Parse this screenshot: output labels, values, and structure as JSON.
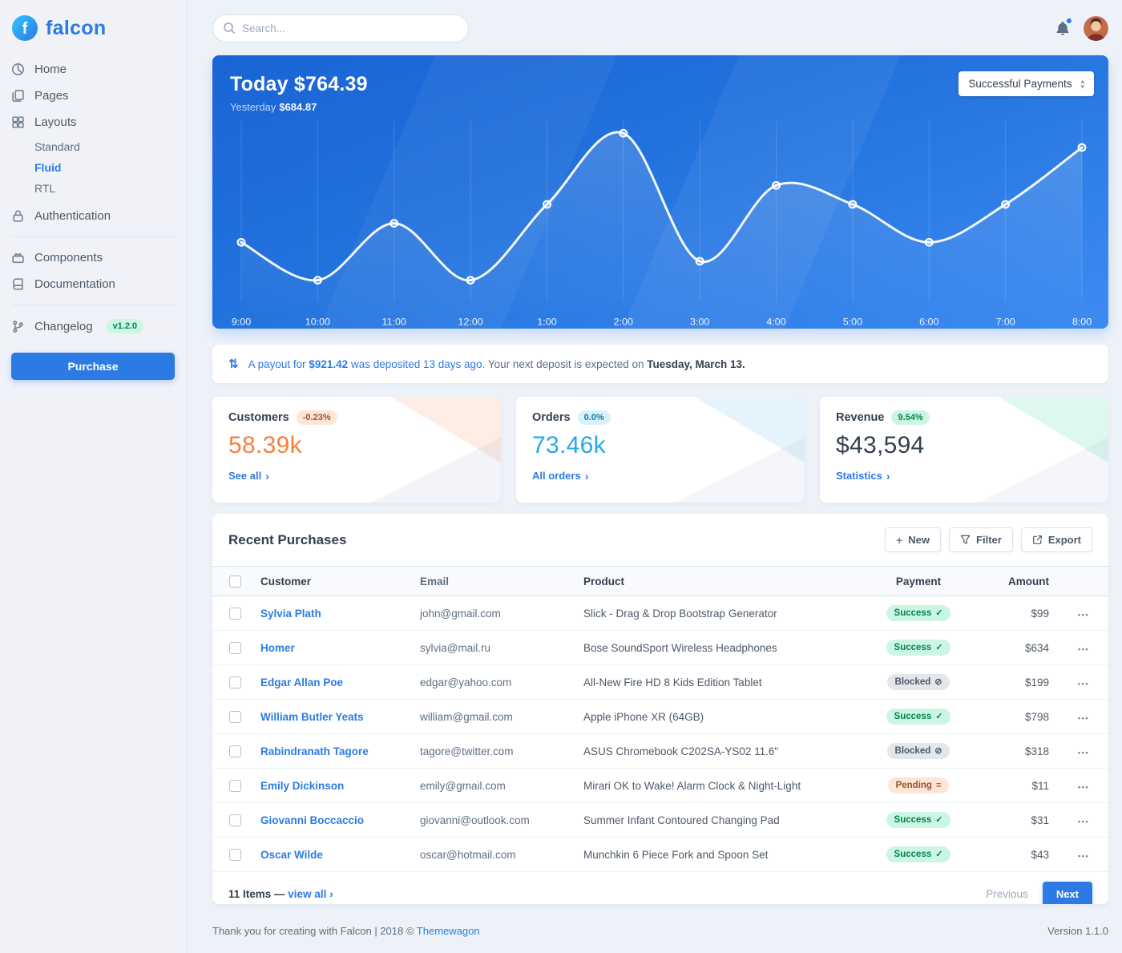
{
  "brand": {
    "name": "falcon"
  },
  "sidebar": {
    "items": {
      "home": "Home",
      "pages": "Pages",
      "layouts": "Layouts",
      "layouts_children": [
        "Standard",
        "Fluid",
        "RTL"
      ],
      "active_layout": "Fluid",
      "authentication": "Authentication",
      "components": "Components",
      "documentation": "Documentation",
      "changelog": "Changelog",
      "changelog_badge": "v1.2.0"
    },
    "purchase_label": "Purchase"
  },
  "topbar": {
    "search_placeholder": "Search..."
  },
  "chart_card": {
    "title": "Today $764.39",
    "yesterday_label": "Yesterday",
    "yesterday_value": "$684.87",
    "select_value": "Successful Payments"
  },
  "chart_data": {
    "type": "line",
    "title": "Today $764.39",
    "x": [
      "9:00",
      "10:00",
      "11:00",
      "12:00",
      "1:00",
      "2:00",
      "3:00",
      "4:00",
      "5:00",
      "6:00",
      "7:00",
      "8:00"
    ],
    "values": [
      70,
      30,
      90,
      30,
      110,
      185,
      50,
      130,
      110,
      70,
      110,
      170
    ],
    "ylim": [
      0,
      200
    ],
    "grid": "vertical",
    "line_color": "#ffffff"
  },
  "payout_notice": {
    "link_part_1": "A payout for ",
    "amount": "$921.42",
    "link_part_2": " was deposited 13 days ago.",
    "muted_part": " Your next deposit is expected on ",
    "date": "Tuesday, March 13."
  },
  "stats": {
    "customers": {
      "title": "Customers",
      "badge": "-0.23%",
      "value": "58.39k",
      "link": "See all"
    },
    "orders": {
      "title": "Orders",
      "badge": "0.0%",
      "value": "73.46k",
      "link": "All orders"
    },
    "revenue": {
      "title": "Revenue",
      "badge": "9.54%",
      "value": "$43,594",
      "link": "Statistics"
    }
  },
  "purchases": {
    "title": "Recent Purchases",
    "buttons": {
      "new": "New",
      "filter": "Filter",
      "export": "Export"
    },
    "columns": [
      "Customer",
      "Email",
      "Product",
      "Payment",
      "Amount"
    ],
    "rows": [
      {
        "customer": "Sylvia Plath",
        "email": "john@gmail.com",
        "product": "Slick - Drag & Drop Bootstrap Generator",
        "payment": "Success",
        "status": "success",
        "amount": "$99"
      },
      {
        "customer": "Homer",
        "email": "sylvia@mail.ru",
        "product": "Bose SoundSport Wireless Headphones",
        "payment": "Success",
        "status": "success",
        "amount": "$634"
      },
      {
        "customer": "Edgar Allan Poe",
        "email": "edgar@yahoo.com",
        "product": "All-New Fire HD 8 Kids Edition Tablet",
        "payment": "Blocked",
        "status": "blocked",
        "amount": "$199"
      },
      {
        "customer": "William Butler Yeats",
        "email": "william@gmail.com",
        "product": "Apple iPhone XR (64GB)",
        "payment": "Success",
        "status": "success",
        "amount": "$798"
      },
      {
        "customer": "Rabindranath Tagore",
        "email": "tagore@twitter.com",
        "product": "ASUS Chromebook C202SA-YS02 11.6\"",
        "payment": "Blocked",
        "status": "blocked",
        "amount": "$318"
      },
      {
        "customer": "Emily Dickinson",
        "email": "emily@gmail.com",
        "product": "Mirari OK to Wake! Alarm Clock & Night-Light",
        "payment": "Pending",
        "status": "pending",
        "amount": "$11"
      },
      {
        "customer": "Giovanni Boccaccio",
        "email": "giovanni@outlook.com",
        "product": "Summer Infant Contoured Changing Pad",
        "payment": "Success",
        "status": "success",
        "amount": "$31"
      },
      {
        "customer": "Oscar Wilde",
        "email": "oscar@hotmail.com",
        "product": "Munchkin 6 Piece Fork and Spoon Set",
        "payment": "Success",
        "status": "success",
        "amount": "$43"
      }
    ],
    "footer": {
      "items_text": "11 Items — ",
      "view_all": "view all",
      "previous": "Previous",
      "next": "Next"
    }
  },
  "status_icons": {
    "success": "✓",
    "blocked": "⊘",
    "pending": "≡"
  },
  "icons": {
    "exchange": "⇅",
    "chevron_right": "›",
    "plus": "+",
    "ellipsis": "•••",
    "caret_up": "▴",
    "caret_down": "▾"
  },
  "footer": {
    "left_text": "Thank you for creating with Falcon | 2018 © ",
    "link": "Themewagon",
    "version": "Version 1.1.0"
  },
  "colors": {
    "primary": "#2c7be5",
    "warning": "#f5803e",
    "info": "#27a8e8",
    "success": "#00864e",
    "dark": "#344050",
    "chart_gradient": [
      "#1a64d4",
      "#3d8bf2"
    ]
  }
}
